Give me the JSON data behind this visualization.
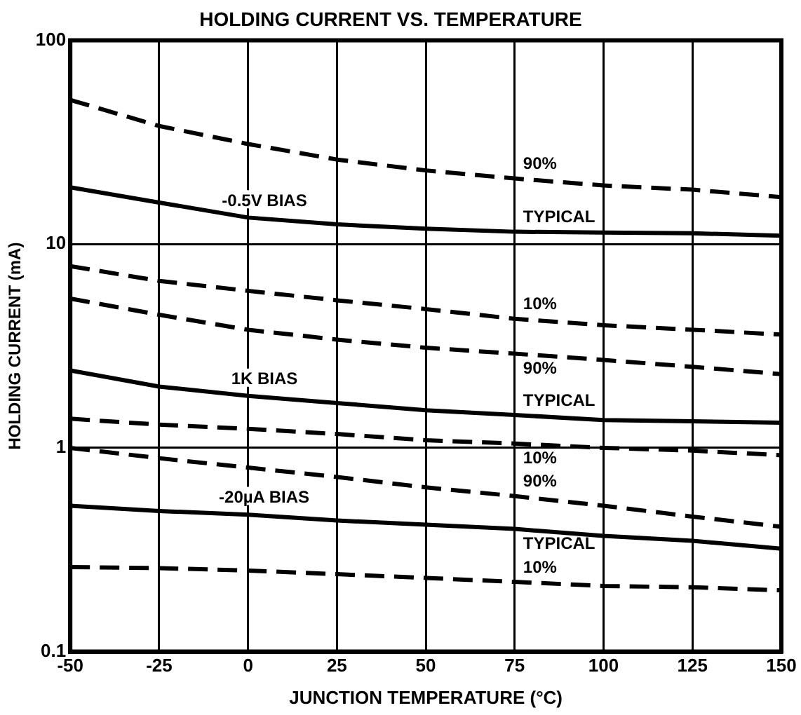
{
  "chart_data": {
    "type": "line",
    "title": "HOLDING CURRENT VS. TEMPERATURE",
    "xlabel": "JUNCTION TEMPERATURE (°C)",
    "ylabel": "HOLDING CURRENT (mA)",
    "x": [
      -50,
      -25,
      0,
      25,
      50,
      75,
      100,
      125,
      150
    ],
    "series": [
      {
        "name": "90%",
        "color": "#000000",
        "line_style": "dashed",
        "values": [
          51,
          38,
          31,
          26,
          23,
          21,
          19.4,
          18.5,
          17
        ]
      },
      {
        "name": "TYPICAL",
        "color": "#000000",
        "line_style": "solid",
        "values": [
          19,
          16,
          13.5,
          12.5,
          11.9,
          11.5,
          11.4,
          11.3,
          11
        ]
      },
      {
        "name": "10%",
        "color": "#000000",
        "line_style": "dashed",
        "values": [
          7.8,
          6.6,
          5.9,
          5.3,
          4.8,
          4.3,
          4,
          3.8,
          3.6
        ]
      },
      {
        "name": "90%",
        "color": "#000000",
        "line_style": "dashed",
        "values": [
          5.4,
          4.5,
          3.8,
          3.4,
          3.1,
          2.9,
          2.7,
          2.5,
          2.3
        ]
      },
      {
        "name": "TYPICAL",
        "color": "#000000",
        "line_style": "solid",
        "values": [
          2.4,
          2,
          1.8,
          1.66,
          1.53,
          1.45,
          1.37,
          1.35,
          1.33
        ]
      },
      {
        "name": "10%",
        "color": "#000000",
        "line_style": "dashed",
        "values": [
          1.39,
          1.3,
          1.24,
          1.17,
          1.09,
          1.05,
          1,
          0.97,
          0.92
        ]
      },
      {
        "name": "90%",
        "color": "#000000",
        "line_style": "dashed",
        "values": [
          1,
          0.89,
          0.8,
          0.72,
          0.64,
          0.58,
          0.52,
          0.46,
          0.41
        ]
      },
      {
        "name": "TYPICAL",
        "color": "#000000",
        "line_style": "solid",
        "values": [
          0.52,
          0.49,
          0.47,
          0.44,
          0.42,
          0.4,
          0.37,
          0.35,
          0.32
        ]
      },
      {
        "name": "10%",
        "color": "#000000",
        "line_style": "dashed",
        "values": [
          0.26,
          0.257,
          0.25,
          0.24,
          0.23,
          0.22,
          0.21,
          0.207,
          0.2
        ]
      }
    ],
    "xlim": [
      -50,
      150
    ],
    "xticks": [
      -50,
      -25,
      0,
      25,
      50,
      75,
      100,
      125,
      150
    ],
    "ylim": [
      0.1,
      100
    ],
    "yticks": [
      0.1,
      1,
      10,
      100
    ],
    "log": "y",
    "grid": true,
    "legend": false,
    "marker": "none",
    "annotations": [
      "-0.5V BIAS",
      "1K BIAS",
      "-20µA BIAS"
    ]
  }
}
